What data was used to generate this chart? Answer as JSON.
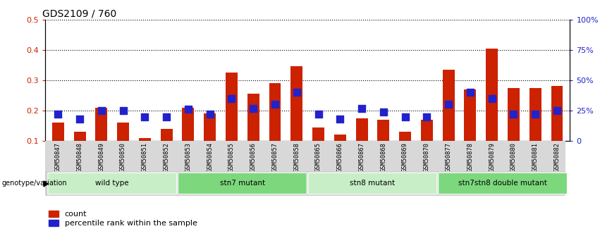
{
  "title": "GDS2109 / 760",
  "samples": [
    "GSM50847",
    "GSM50848",
    "GSM50849",
    "GSM50850",
    "GSM50851",
    "GSM50852",
    "GSM50853",
    "GSM50854",
    "GSM50855",
    "GSM50856",
    "GSM50857",
    "GSM50858",
    "GSM50865",
    "GSM50866",
    "GSM50867",
    "GSM50868",
    "GSM50869",
    "GSM50870",
    "GSM50877",
    "GSM50878",
    "GSM50879",
    "GSM50880",
    "GSM50881",
    "GSM50882"
  ],
  "counts": [
    0.16,
    0.13,
    0.21,
    0.16,
    0.11,
    0.14,
    0.21,
    0.19,
    0.325,
    0.255,
    0.29,
    0.345,
    0.145,
    0.12,
    0.175,
    0.17,
    0.13,
    0.17,
    0.335,
    0.27,
    0.405,
    0.275,
    0.275,
    0.28
  ],
  "percentile_ranks_pct": [
    22,
    18,
    25,
    25,
    20,
    20,
    26,
    22,
    35,
    27,
    30,
    40,
    22,
    18,
    27,
    24,
    20,
    20,
    30,
    40,
    35,
    22,
    22,
    25
  ],
  "groups": [
    {
      "label": "wild type",
      "start": 0,
      "end": 6,
      "color": "#c8eec8"
    },
    {
      "label": "stn7 mutant",
      "start": 6,
      "end": 12,
      "color": "#7dd87d"
    },
    {
      "label": "stn8 mutant",
      "start": 12,
      "end": 18,
      "color": "#c8eec8"
    },
    {
      "label": "stn7stn8 double mutant",
      "start": 18,
      "end": 24,
      "color": "#7dd87d"
    }
  ],
  "bar_color": "#cc2200",
  "dot_color": "#2222cc",
  "ylim_left": [
    0.1,
    0.5
  ],
  "ylim_right": [
    0,
    100
  ],
  "yticks_left": [
    0.1,
    0.2,
    0.3,
    0.4,
    0.5
  ],
  "yticks_right": [
    0,
    25,
    50,
    75,
    100
  ],
  "legend_count_label": "count",
  "legend_pct_label": "percentile rank within the sample"
}
